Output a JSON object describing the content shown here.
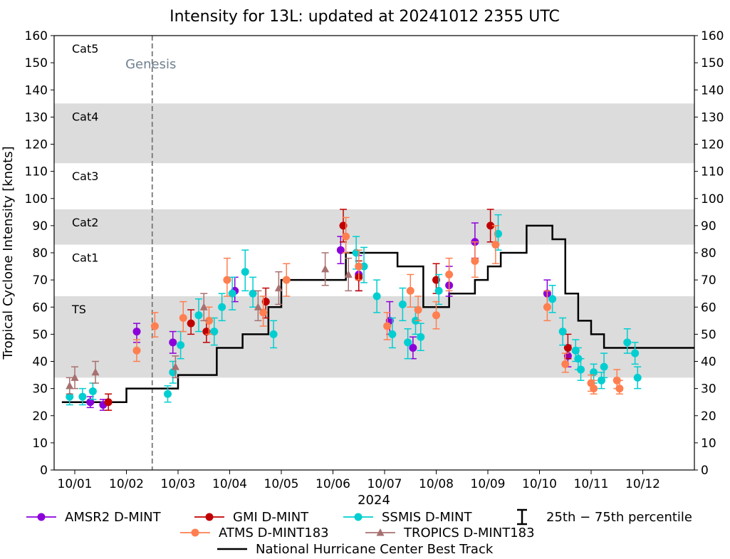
{
  "chart_data": {
    "type": "scatter",
    "title": "Intensity for 13L: updated at 20241012 2355 UTC",
    "xlabel": "2024",
    "ylabel": "Tropical Cyclone Intensity [knots]",
    "x_unit": "days since 10/01 00 UTC",
    "xlim": [
      -0.4,
      12.0
    ],
    "ylim": [
      0,
      160
    ],
    "y_ticks": [
      0,
      10,
      20,
      30,
      40,
      50,
      60,
      70,
      80,
      90,
      100,
      110,
      120,
      130,
      140,
      150,
      160
    ],
    "x_ticks": [
      {
        "x": 0,
        "label": "10/01"
      },
      {
        "x": 1,
        "label": "10/02"
      },
      {
        "x": 2,
        "label": "10/03"
      },
      {
        "x": 3,
        "label": "10/04"
      },
      {
        "x": 4,
        "label": "10/05"
      },
      {
        "x": 5,
        "label": "10/06"
      },
      {
        "x": 6,
        "label": "10/07"
      },
      {
        "x": 7,
        "label": "10/08"
      },
      {
        "x": 8,
        "label": "10/09"
      },
      {
        "x": 9,
        "label": "10/10"
      },
      {
        "x": 10,
        "label": "10/11"
      },
      {
        "x": 11,
        "label": "10/12"
      }
    ],
    "category_bands": [
      {
        "label": "TS",
        "low": 34,
        "high": 64,
        "shaded": true
      },
      {
        "label": "Cat1",
        "low": 64,
        "high": 83,
        "shaded": false
      },
      {
        "label": "Cat2",
        "low": 83,
        "high": 96,
        "shaded": true
      },
      {
        "label": "Cat3",
        "low": 96,
        "high": 113,
        "shaded": false
      },
      {
        "label": "Cat4",
        "low": 113,
        "high": 135,
        "shaded": true
      },
      {
        "label": "Cat5",
        "low": 135,
        "high": 160,
        "shaded": false
      }
    ],
    "genesis": {
      "x": 1.5,
      "label": "Genesis"
    },
    "best_track": {
      "name": "National Hurricane Center Best Track",
      "color": "#000000",
      "x": [
        -0.25,
        0.75,
        1.0,
        1.75,
        2.0,
        2.25,
        2.75,
        3.0,
        3.25,
        3.75,
        4.0,
        4.5,
        4.75,
        5.0,
        5.25,
        5.5,
        5.75,
        6.0,
        6.25,
        6.75,
        7.0,
        7.25,
        7.75,
        8.0,
        8.25,
        8.75,
        9.0,
        9.25,
        9.5,
        9.75,
        10.0,
        10.25,
        10.5,
        11.0,
        11.5,
        11.75,
        12.0
      ],
      "y": [
        25,
        25,
        30,
        30,
        35,
        35,
        45,
        45,
        50,
        60,
        70,
        70,
        70,
        70,
        80,
        80,
        80,
        80,
        75,
        60,
        60,
        65,
        70,
        75,
        80,
        90,
        90,
        85,
        65,
        55,
        50,
        45,
        45,
        45,
        45,
        45,
        45
      ]
    },
    "series": [
      {
        "name": "AMSR2 D-MINT",
        "color": "#8B00D9",
        "marker": "circle",
        "points": [
          [
            0.3,
            25,
            23,
            27
          ],
          [
            0.55,
            24,
            22,
            26
          ],
          [
            1.2,
            51,
            47,
            54
          ],
          [
            1.9,
            47,
            43,
            51
          ],
          [
            3.1,
            66,
            62,
            71
          ],
          [
            5.15,
            81,
            76,
            86
          ],
          [
            5.5,
            72,
            66,
            79
          ],
          [
            6.1,
            55,
            50,
            62
          ],
          [
            6.55,
            45,
            41,
            49
          ],
          [
            7.25,
            68,
            64,
            75
          ],
          [
            7.75,
            84,
            78,
            91
          ],
          [
            9.15,
            65,
            60,
            70
          ],
          [
            9.55,
            42,
            38,
            46
          ]
        ]
      },
      {
        "name": "GMI D-MINT",
        "color": "#C00000",
        "marker": "circle",
        "points": [
          [
            0.65,
            25,
            22,
            28
          ],
          [
            2.25,
            54,
            50,
            59
          ],
          [
            2.55,
            51,
            47,
            55
          ],
          [
            3.7,
            62,
            56,
            67
          ],
          [
            5.2,
            90,
            84,
            96
          ],
          [
            5.5,
            71,
            66,
            77
          ],
          [
            7.0,
            70,
            65,
            76
          ],
          [
            8.05,
            90,
            84,
            96
          ],
          [
            9.55,
            45,
            41,
            50
          ]
        ]
      },
      {
        "name": "SSMIS D-MINT",
        "color": "#00CED1",
        "marker": "circle",
        "points": [
          [
            -0.1,
            27,
            24,
            30
          ],
          [
            0.15,
            27,
            24,
            30
          ],
          [
            0.35,
            29,
            26,
            32
          ],
          [
            1.8,
            28,
            25,
            31
          ],
          [
            1.9,
            36,
            32,
            40
          ],
          [
            2.05,
            46,
            41,
            51
          ],
          [
            2.4,
            57,
            51,
            63
          ],
          [
            2.7,
            51,
            46,
            56
          ],
          [
            2.85,
            60,
            55,
            65
          ],
          [
            3.05,
            65,
            59,
            71
          ],
          [
            3.3,
            73,
            66,
            81
          ],
          [
            3.45,
            65,
            60,
            71
          ],
          [
            3.85,
            50,
            45,
            55
          ],
          [
            5.45,
            80,
            74,
            86
          ],
          [
            5.6,
            75,
            69,
            82
          ],
          [
            5.85,
            64,
            58,
            70
          ],
          [
            6.15,
            50,
            45,
            56
          ],
          [
            6.35,
            61,
            55,
            67
          ],
          [
            6.45,
            47,
            41,
            52
          ],
          [
            6.6,
            55,
            50,
            60
          ],
          [
            6.7,
            49,
            44,
            54
          ],
          [
            7.05,
            66,
            61,
            72
          ],
          [
            8.2,
            87,
            81,
            94
          ],
          [
            9.25,
            63,
            58,
            68
          ],
          [
            9.45,
            51,
            46,
            56
          ],
          [
            9.7,
            44,
            40,
            48
          ],
          [
            9.75,
            41,
            37,
            45
          ],
          [
            9.8,
            37,
            33,
            41
          ],
          [
            10.05,
            36,
            32,
            39
          ],
          [
            10.2,
            33,
            30,
            36
          ],
          [
            10.25,
            38,
            34,
            43
          ],
          [
            10.7,
            47,
            43,
            52
          ],
          [
            10.85,
            43,
            39,
            47
          ],
          [
            10.9,
            34,
            30,
            38
          ]
        ]
      },
      {
        "name": "ATMS D-MINT183",
        "color": "#FF7F50",
        "marker": "circle",
        "points": [
          [
            1.2,
            44,
            40,
            48
          ],
          [
            1.55,
            53,
            49,
            58
          ],
          [
            2.1,
            56,
            51,
            62
          ],
          [
            2.6,
            55,
            50,
            60
          ],
          [
            2.95,
            70,
            64,
            78
          ],
          [
            3.65,
            58,
            53,
            64
          ],
          [
            4.1,
            70,
            64,
            76
          ],
          [
            5.25,
            86,
            80,
            93
          ],
          [
            5.5,
            75,
            70,
            81
          ],
          [
            6.05,
            53,
            48,
            58
          ],
          [
            6.5,
            66,
            60,
            72
          ],
          [
            6.65,
            59,
            55,
            64
          ],
          [
            7.0,
            57,
            52,
            62
          ],
          [
            7.25,
            72,
            66,
            78
          ],
          [
            7.75,
            77,
            71,
            84
          ],
          [
            8.15,
            83,
            76,
            90
          ],
          [
            9.15,
            60,
            55,
            66
          ],
          [
            9.5,
            39,
            36,
            43
          ],
          [
            10.0,
            32,
            29,
            35
          ],
          [
            10.05,
            30,
            28,
            33
          ],
          [
            10.5,
            33,
            30,
            37
          ],
          [
            10.55,
            30,
            28,
            33
          ]
        ]
      },
      {
        "name": "TROPICS D-MINT183",
        "color": "#A87070",
        "marker": "triangle",
        "points": [
          [
            -0.1,
            31,
            28,
            34
          ],
          [
            0.0,
            34,
            30,
            38
          ],
          [
            0.4,
            36,
            32,
            40
          ],
          [
            1.95,
            38,
            34,
            42
          ],
          [
            2.5,
            60,
            55,
            65
          ],
          [
            3.55,
            60,
            55,
            66
          ],
          [
            3.95,
            67,
            61,
            73
          ],
          [
            4.85,
            74,
            68,
            80
          ],
          [
            5.3,
            72,
            66,
            78
          ]
        ]
      }
    ],
    "legend": {
      "placement": "bottom",
      "percentile_label": "25th − 75th percentile"
    }
  }
}
